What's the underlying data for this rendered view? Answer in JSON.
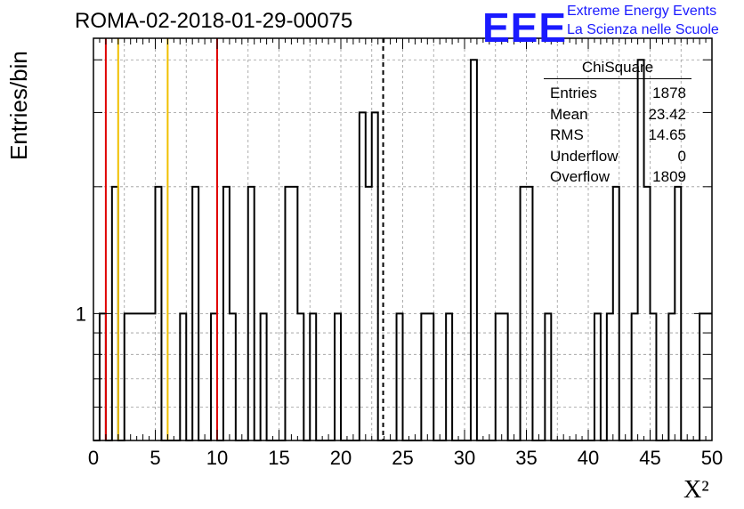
{
  "title": "ROMA-02-2018-01-29-00075",
  "logo": {
    "mark": "EEE",
    "line1": "Extreme Energy Events",
    "line2": "La Scienza nelle Scuole",
    "color": "#1a1aff"
  },
  "stats": {
    "name": "ChiSquare",
    "rows": [
      {
        "label": "Entries",
        "value": "1878"
      },
      {
        "label": "Mean",
        "value": "23.42"
      },
      {
        "label": "RMS",
        "value": "14.65"
      },
      {
        "label": "Underflow",
        "value": "0"
      },
      {
        "label": "Overflow",
        "value": "1809"
      }
    ]
  },
  "chart_data": {
    "type": "histogram",
    "xlabel": "X²",
    "ylabel": "Entries/bin",
    "xlim": [
      0,
      50
    ],
    "ylim": [
      0.5,
      4.5
    ],
    "log_y": true,
    "grid": true,
    "bin_width": 0.5,
    "x_ticks": [
      0,
      5,
      10,
      15,
      20,
      25,
      30,
      35,
      40,
      45,
      50
    ],
    "y_tick_labels": [
      {
        "value": 1,
        "label": "1"
      }
    ],
    "bins": [
      {
        "x": 0.5,
        "y": 1
      },
      {
        "x": 1.5,
        "y": 2
      },
      {
        "x": 2.5,
        "y": 1
      },
      {
        "x": 3.0,
        "y": 1
      },
      {
        "x": 3.5,
        "y": 1
      },
      {
        "x": 4.0,
        "y": 1
      },
      {
        "x": 4.5,
        "y": 1
      },
      {
        "x": 5.0,
        "y": 1
      },
      {
        "x": 5.0,
        "y": 1
      },
      {
        "x": 5.0,
        "y": 2
      },
      {
        "x": 7.0,
        "y": 1
      },
      {
        "x": 8.0,
        "y": 2
      },
      {
        "x": 9.5,
        "y": 1
      },
      {
        "x": 10.5,
        "y": 2
      },
      {
        "x": 11.0,
        "y": 1
      },
      {
        "x": 12.5,
        "y": 2
      },
      {
        "x": 13.5,
        "y": 1
      },
      {
        "x": 15.5,
        "y": 2
      },
      {
        "x": 16.0,
        "y": 2
      },
      {
        "x": 16.5,
        "y": 1
      },
      {
        "x": 17.5,
        "y": 1
      },
      {
        "x": 19.5,
        "y": 1
      },
      {
        "x": 21.5,
        "y": 3
      },
      {
        "x": 22.0,
        "y": 2
      },
      {
        "x": 22.5,
        "y": 3
      },
      {
        "x": 24.5,
        "y": 1
      },
      {
        "x": 26.5,
        "y": 1
      },
      {
        "x": 27.0,
        "y": 1
      },
      {
        "x": 28.5,
        "y": 1
      },
      {
        "x": 30.5,
        "y": 4
      },
      {
        "x": 32.5,
        "y": 1
      },
      {
        "x": 33.0,
        "y": 1
      },
      {
        "x": 34.5,
        "y": 2
      },
      {
        "x": 35.0,
        "y": 2
      },
      {
        "x": 36.5,
        "y": 1
      },
      {
        "x": 40.5,
        "y": 1
      },
      {
        "x": 41.5,
        "y": 1
      },
      {
        "x": 42.0,
        "y": 2
      },
      {
        "x": 43.5,
        "y": 1
      },
      {
        "x": 44.0,
        "y": 4
      },
      {
        "x": 44.5,
        "y": 2
      },
      {
        "x": 45.0,
        "y": 1
      },
      {
        "x": 46.5,
        "y": 1
      },
      {
        "x": 47.0,
        "y": 2
      },
      {
        "x": 49.0,
        "y": 1
      },
      {
        "x": 49.5,
        "y": 1
      }
    ],
    "vertical_lines": [
      {
        "x": 1.0,
        "color": "#e00000",
        "style": "solid"
      },
      {
        "x": 2.0,
        "color": "#f0c000",
        "style": "solid"
      },
      {
        "x": 6.0,
        "color": "#f0c000",
        "style": "solid"
      },
      {
        "x": 10.0,
        "color": "#e00000",
        "style": "solid"
      },
      {
        "x": 23.42,
        "color": "#000000",
        "style": "dashed"
      }
    ]
  }
}
